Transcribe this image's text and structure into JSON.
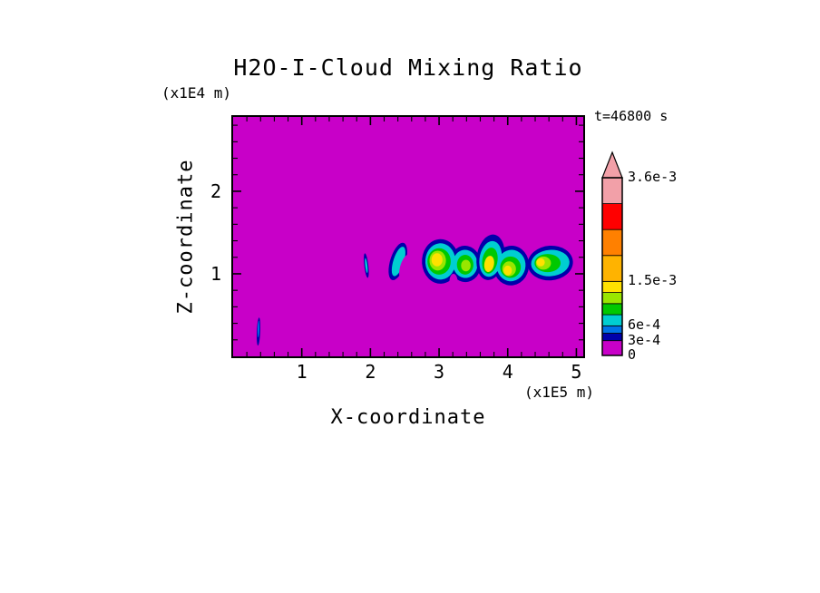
{
  "title": "H2O-I-Cloud Mixing Ratio",
  "time_label": "t=46800 s",
  "axes": {
    "x_label": "X-coordinate",
    "x_unit": "(x1E5 m)",
    "z_label": "Z-coordinate",
    "z_unit": "(x1E4 m)"
  },
  "chart_data": {
    "type": "heatmap",
    "title": "H2O-I-Cloud Mixing Ratio",
    "xlabel": "X-coordinate (x1E5 m)",
    "ylabel": "Z-coordinate (x1E4 m)",
    "time_annotation": "t=46800 s",
    "x_range": [
      0,
      5.1
    ],
    "z_range": [
      0,
      2.9
    ],
    "x_major_ticks": [
      1,
      2,
      3,
      4,
      5
    ],
    "z_major_ticks": [
      1,
      2
    ],
    "minor_tick_step": 0.2,
    "grid": false,
    "background_value": 0,
    "background_color": "#C800C8",
    "colorbar": {
      "position": "right",
      "vmax": 0.0036,
      "overflow_color": "#F2A0A8",
      "labels": [
        {
          "text": "3.6e-3",
          "value": 0.0036
        },
        {
          "text": "1.5e-3",
          "value": 0.0015
        },
        {
          "text": "6e-4",
          "value": 0.0006
        },
        {
          "text": "3e-4",
          "value": 0.0003
        },
        {
          "text": "0",
          "value": 0
        }
      ],
      "segments": [
        {
          "from": 0,
          "to": 0.0003,
          "color": "#C800C8"
        },
        {
          "from": 0.0003,
          "to": 0.00045,
          "color": "#0000AA"
        },
        {
          "from": 0.00045,
          "to": 0.0006,
          "color": "#0073E6"
        },
        {
          "from": 0.0006,
          "to": 0.000825,
          "color": "#00CED1"
        },
        {
          "from": 0.000825,
          "to": 0.00105,
          "color": "#00C800"
        },
        {
          "from": 0.00105,
          "to": 0.001275,
          "color": "#99E600"
        },
        {
          "from": 0.001275,
          "to": 0.0015,
          "color": "#FFE100"
        },
        {
          "from": 0.0015,
          "to": 0.002025,
          "color": "#FFB300"
        },
        {
          "from": 0.002025,
          "to": 0.00255,
          "color": "#FF8000"
        },
        {
          "from": 0.00255,
          "to": 0.003075,
          "color": "#FF0000"
        },
        {
          "from": 0.003075,
          "to": 0.0036,
          "color": "#F2A0A8"
        }
      ]
    },
    "clouds": [
      {
        "name": "wisp-left",
        "ellipses": [
          {
            "cx": 0.37,
            "cz": 0.3,
            "rx": 0.025,
            "rz": 0.17,
            "rot": 3,
            "color": "#0000AA",
            "value": 0.0003
          },
          {
            "cx": 0.37,
            "cz": 0.33,
            "rx": 0.013,
            "rz": 0.1,
            "rot": 3,
            "color": "#0073E6",
            "value": 0.00045
          }
        ]
      },
      {
        "name": "wisp-mid",
        "ellipses": [
          {
            "cx": 1.94,
            "cz": 1.1,
            "rx": 0.03,
            "rz": 0.15,
            "rot": -8,
            "color": "#0000AA",
            "value": 0.0003
          },
          {
            "cx": 1.94,
            "cz": 1.1,
            "rx": 0.016,
            "rz": 0.09,
            "rot": -8,
            "color": "#00CED1",
            "value": 0.0006
          }
        ]
      },
      {
        "name": "crescent",
        "ellipses": [
          {
            "cx": 2.4,
            "cz": 1.15,
            "rx": 0.11,
            "rz": 0.24,
            "rot": 22,
            "color": "#0000AA",
            "value": 0.0003
          },
          {
            "cx": 2.41,
            "cz": 1.15,
            "rx": 0.075,
            "rz": 0.19,
            "rot": 22,
            "color": "#00CED1",
            "value": 0.0006
          },
          {
            "cx": 2.52,
            "cz": 1.08,
            "rx": 0.085,
            "rz": 0.17,
            "rot": 22,
            "color": "#C800C8",
            "value": 0
          }
        ]
      },
      {
        "name": "cell-a",
        "ellipses": [
          {
            "cx": 3.02,
            "cz": 1.15,
            "rx": 0.27,
            "rz": 0.27,
            "rot": -5,
            "color": "#0000AA",
            "value": 0.0003
          },
          {
            "cx": 3.38,
            "cz": 1.12,
            "rx": 0.23,
            "rz": 0.22,
            "rot": 10,
            "color": "#0000AA",
            "value": 0.0003
          },
          {
            "cx": 3.02,
            "cz": 1.15,
            "rx": 0.22,
            "rz": 0.22,
            "rot": -5,
            "color": "#00CED1",
            "value": 0.0006
          },
          {
            "cx": 3.38,
            "cz": 1.12,
            "rx": 0.18,
            "rz": 0.17,
            "rot": 10,
            "color": "#00CED1",
            "value": 0.0006
          },
          {
            "cx": 3.0,
            "cz": 1.15,
            "rx": 0.17,
            "rz": 0.16,
            "rot": 0,
            "color": "#00C800",
            "value": 0.000825
          },
          {
            "cx": 3.38,
            "cz": 1.11,
            "rx": 0.12,
            "rz": 0.12,
            "rot": 0,
            "color": "#00C800",
            "value": 0.000825
          },
          {
            "cx": 2.98,
            "cz": 1.16,
            "rx": 0.12,
            "rz": 0.12,
            "rot": 0,
            "color": "#99E600",
            "value": 0.00105
          },
          {
            "cx": 3.39,
            "cz": 1.1,
            "rx": 0.07,
            "rz": 0.07,
            "rot": 0,
            "color": "#99E600",
            "value": 0.00105
          },
          {
            "cx": 2.97,
            "cz": 1.17,
            "rx": 0.08,
            "rz": 0.08,
            "rot": 0,
            "color": "#FFE100",
            "value": 0.001275
          },
          {
            "cx": 3.21,
            "cz": 0.9,
            "rx": 0.06,
            "rz": 0.1,
            "rot": 0,
            "color": "#C800C8",
            "value": 0
          }
        ]
      },
      {
        "name": "cell-b",
        "ellipses": [
          {
            "cx": 3.75,
            "cz": 1.2,
            "rx": 0.2,
            "rz": 0.28,
            "rot": 15,
            "color": "#0000AA",
            "value": 0.0003
          },
          {
            "cx": 4.05,
            "cz": 1.1,
            "rx": 0.26,
            "rz": 0.24,
            "rot": -8,
            "color": "#0000AA",
            "value": 0.0003
          },
          {
            "cx": 3.75,
            "cz": 1.18,
            "rx": 0.16,
            "rz": 0.22,
            "rot": 15,
            "color": "#00CED1",
            "value": 0.0006
          },
          {
            "cx": 4.05,
            "cz": 1.1,
            "rx": 0.21,
            "rz": 0.19,
            "rot": -8,
            "color": "#00CED1",
            "value": 0.0006
          },
          {
            "cx": 3.74,
            "cz": 1.16,
            "rx": 0.11,
            "rz": 0.16,
            "rot": 15,
            "color": "#00C800",
            "value": 0.000825
          },
          {
            "cx": 4.04,
            "cz": 1.08,
            "rx": 0.15,
            "rz": 0.13,
            "rot": 0,
            "color": "#00C800",
            "value": 0.000825
          },
          {
            "cx": 4.02,
            "cz": 1.06,
            "rx": 0.1,
            "rz": 0.09,
            "rot": 0,
            "color": "#99E600",
            "value": 0.00105
          },
          {
            "cx": 3.73,
            "cz": 1.12,
            "rx": 0.07,
            "rz": 0.1,
            "rot": 15,
            "color": "#FFE100",
            "value": 0.001275
          },
          {
            "cx": 4.0,
            "cz": 1.04,
            "rx": 0.06,
            "rz": 0.06,
            "rot": 0,
            "color": "#FFE100",
            "value": 0.001275
          }
        ]
      },
      {
        "name": "cell-c",
        "ellipses": [
          {
            "cx": 4.62,
            "cz": 1.13,
            "rx": 0.33,
            "rz": 0.21,
            "rot": -3,
            "color": "#0000AA",
            "value": 0.0003
          },
          {
            "cx": 4.62,
            "cz": 1.13,
            "rx": 0.28,
            "rz": 0.16,
            "rot": -3,
            "color": "#00CED1",
            "value": 0.0006
          },
          {
            "cx": 4.58,
            "cz": 1.13,
            "rx": 0.19,
            "rz": 0.11,
            "rot": 0,
            "color": "#00C800",
            "value": 0.000825
          },
          {
            "cx": 4.52,
            "cz": 1.13,
            "rx": 0.11,
            "rz": 0.08,
            "rot": 0,
            "color": "#99E600",
            "value": 0.00105
          },
          {
            "cx": 4.48,
            "cz": 1.14,
            "rx": 0.06,
            "rz": 0.05,
            "rot": 0,
            "color": "#FFE100",
            "value": 0.001275
          }
        ]
      }
    ]
  }
}
